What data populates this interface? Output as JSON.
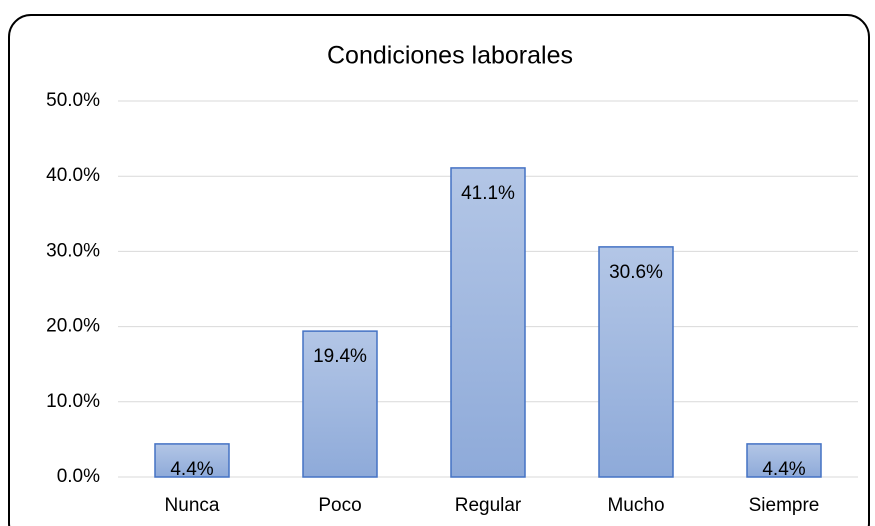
{
  "chart_data": {
    "type": "bar",
    "title": "Condiciones laborales",
    "categories": [
      "Nunca",
      "Poco",
      "Regular",
      "Mucho",
      "Siempre"
    ],
    "values": [
      4.4,
      19.4,
      41.1,
      30.6,
      4.4
    ],
    "value_labels": [
      "4.4%",
      "19.4%",
      "41.1%",
      "30.6%",
      "4.4%"
    ],
    "color": "#95b0dc",
    "ylim": [
      0,
      50
    ],
    "yticks": [
      {
        "value": 0,
        "label": "0.0%"
      },
      {
        "value": 10,
        "label": "10.0%"
      },
      {
        "value": 20,
        "label": "20.0%"
      },
      {
        "value": 30,
        "label": "30.0%"
      },
      {
        "value": 40,
        "label": "40.0%"
      },
      {
        "value": 50,
        "label": "50.0%"
      }
    ],
    "grid": true
  }
}
